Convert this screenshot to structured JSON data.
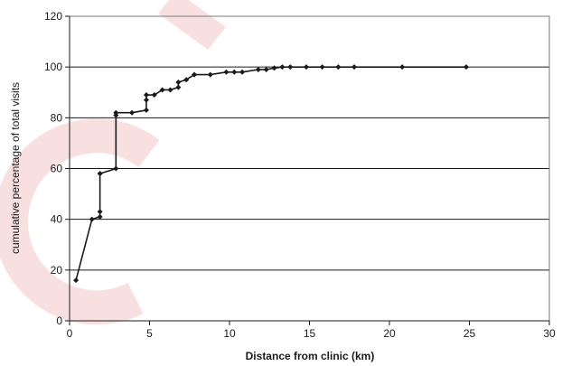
{
  "chart_data": {
    "type": "line",
    "title": "",
    "xlabel": "Distance from clinic (km)",
    "ylabel": "cumulative percentage of total visits",
    "xlim": [
      0,
      30
    ],
    "ylim": [
      0,
      120
    ],
    "x_ticks": [
      0,
      5,
      10,
      15,
      20,
      25,
      30
    ],
    "y_ticks": [
      0,
      20,
      40,
      60,
      80,
      100,
      120
    ],
    "grid": "horizontal",
    "legend": "none",
    "series": [
      {
        "color": "#1a1a1a",
        "marker": "diamond",
        "step": true,
        "x": [
          0.4,
          1.4,
          1.9,
          1.9,
          1.9,
          1.9,
          2.9,
          2.9,
          2.9,
          3.9,
          4.8,
          4.8,
          4.8,
          5.3,
          5.8,
          6.3,
          6.8,
          6.8,
          7.3,
          7.8,
          7.8,
          8.8,
          9.8,
          10.3,
          10.8,
          11.8,
          12.3,
          12.8,
          13.3,
          13.8,
          14.8,
          15.8,
          16.8,
          17.8,
          20.8,
          24.8
        ],
        "y": [
          16,
          40,
          41,
          43,
          58,
          58,
          60,
          81,
          82,
          82,
          83,
          87,
          89,
          89,
          91,
          91,
          92,
          94,
          95,
          97,
          97,
          97,
          98,
          98,
          98,
          99,
          99,
          99.6,
          100,
          100,
          100,
          100,
          100,
          100,
          100,
          100
        ]
      }
    ]
  },
  "watermark": {
    "color": "#f2c6c6"
  }
}
